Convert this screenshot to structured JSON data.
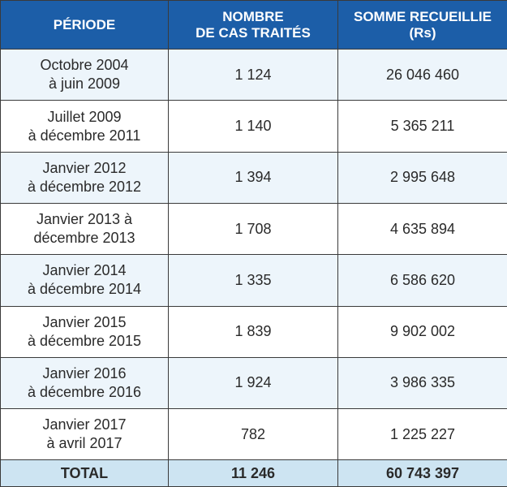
{
  "table": {
    "header": [
      "PÉRIODE",
      "NOMBRE\nDE CAS TRAITÉS",
      "SOMME RECUEILLIE\n(Rs)"
    ],
    "rows": [
      [
        "Octobre 2004\nà juin 2009",
        "1 124",
        "26 046 460"
      ],
      [
        "Juillet 2009\nà décembre 2011",
        "1 140",
        "5 365 211"
      ],
      [
        "Janvier 2012\nà décembre 2012",
        "1 394",
        "2 995 648"
      ],
      [
        "Janvier 2013 à\ndécembre 2013",
        "1 708",
        "4 635 894"
      ],
      [
        "Janvier 2014\nà décembre 2014",
        "1 335",
        "6 586 620"
      ],
      [
        "Janvier 2015\nà décembre 2015",
        "1 839",
        "9 902 002"
      ],
      [
        "Janvier 2016\nà décembre 2016",
        "1 924",
        "3 986 335"
      ],
      [
        "Janvier 2017\nà avril 2017",
        "782",
        "1 225 227"
      ]
    ],
    "total": [
      "TOTAL",
      "11 246",
      "60 743 397"
    ]
  }
}
